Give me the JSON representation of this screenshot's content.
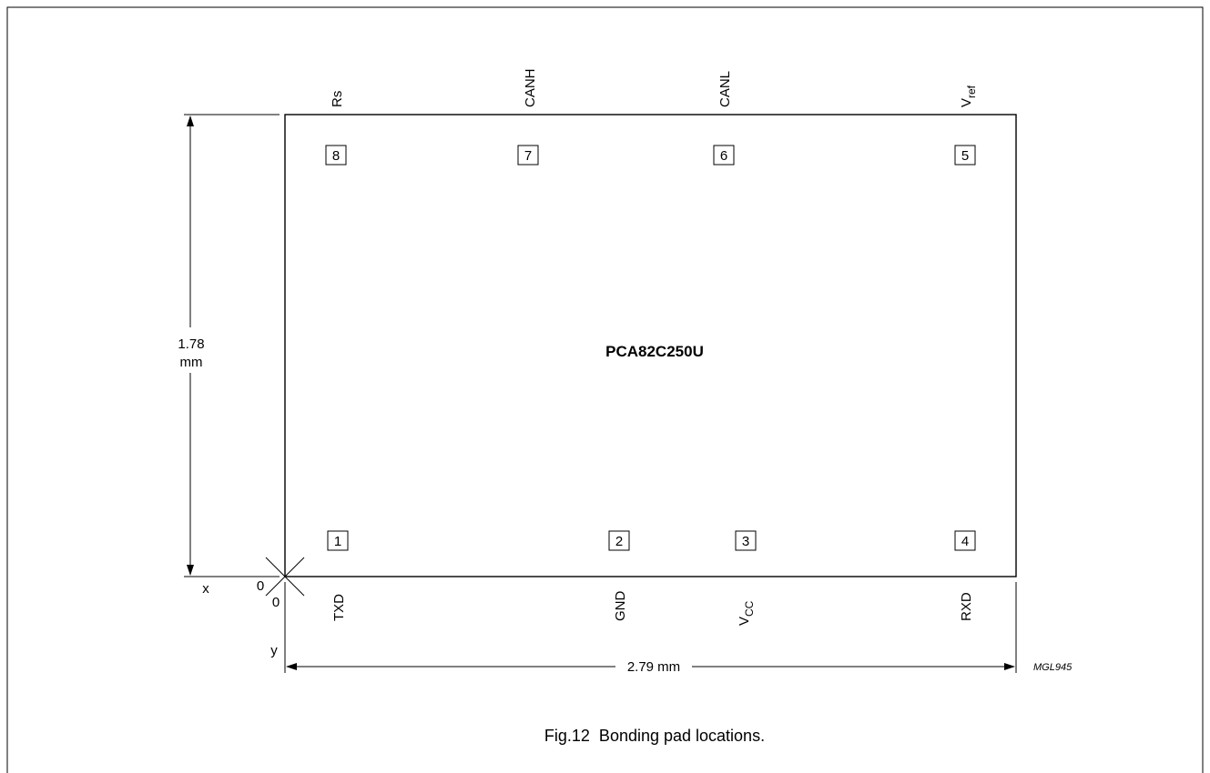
{
  "chip": {
    "name": "PCA82C250U"
  },
  "pads": [
    {
      "num": "1",
      "label": "TXD"
    },
    {
      "num": "2",
      "label": "GND"
    },
    {
      "num": "3",
      "label": "V",
      "sub": "CC"
    },
    {
      "num": "4",
      "label": "RXD"
    },
    {
      "num": "5",
      "label": "V",
      "sub": "ref"
    },
    {
      "num": "6",
      "label": "CANL"
    },
    {
      "num": "7",
      "label": "CANH"
    },
    {
      "num": "8",
      "label": "Rs"
    }
  ],
  "dimensions": {
    "height_value": "1.78",
    "height_unit": "mm",
    "width": "2.79 mm"
  },
  "axes": {
    "x": "x",
    "y": "y",
    "origin_x": "0",
    "origin_y": "0"
  },
  "drawing_code": "MGL945",
  "caption": "Fig.12  Bonding pad locations."
}
